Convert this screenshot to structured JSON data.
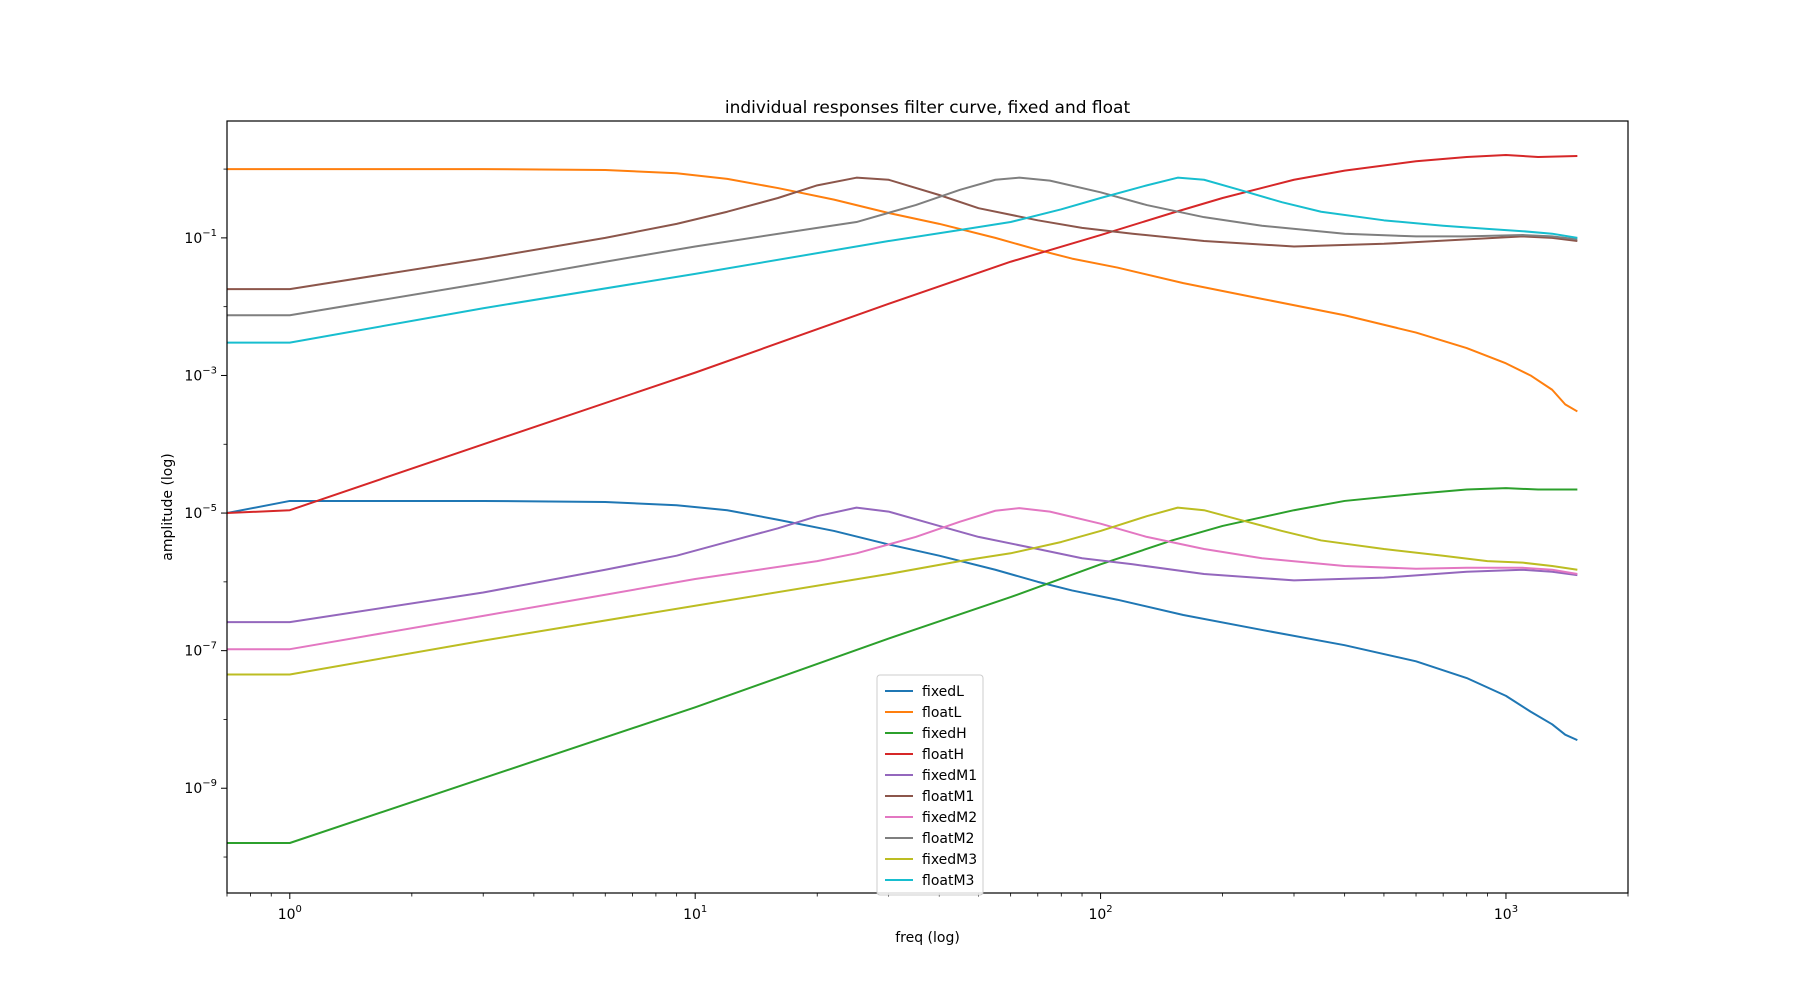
{
  "chart_data": {
    "type": "line",
    "title": "individual responses filter curve, fixed and float",
    "xlabel": "freq (log)",
    "ylabel": "amplitude (log)",
    "xscale": "log",
    "yscale": "log",
    "xlim": [
      0.7,
      2000
    ],
    "ylim": [
      3e-11,
      5
    ],
    "grid": false,
    "legend_position": "lower center",
    "x_ticks": [
      {
        "value": 1,
        "mantissa": "10",
        "exp": "0"
      },
      {
        "value": 10,
        "mantissa": "10",
        "exp": "1"
      },
      {
        "value": 100,
        "mantissa": "10",
        "exp": "2"
      },
      {
        "value": 1000,
        "mantissa": "10",
        "exp": "3"
      }
    ],
    "y_ticks": [
      {
        "value": 1e-09,
        "mantissa": "10",
        "exp": "−9"
      },
      {
        "value": 1e-07,
        "mantissa": "10",
        "exp": "−7"
      },
      {
        "value": 1e-05,
        "mantissa": "10",
        "exp": "−5"
      },
      {
        "value": 0.001,
        "mantissa": "10",
        "exp": "−3"
      },
      {
        "value": 0.1,
        "mantissa": "10",
        "exp": "−1"
      }
    ],
    "series": [
      {
        "name": "fixedL",
        "color": "#1f77b4",
        "points": [
          [
            0.7,
            1e-05
          ],
          [
            1,
            1.5e-05
          ],
          [
            3,
            1.5e-05
          ],
          [
            6,
            1.45e-05
          ],
          [
            9,
            1.3e-05
          ],
          [
            12,
            1.1e-05
          ],
          [
            16,
            8e-06
          ],
          [
            22,
            5.5e-06
          ],
          [
            30,
            3.5e-06
          ],
          [
            40,
            2.4e-06
          ],
          [
            55,
            1.5e-06
          ],
          [
            70,
            1e-06
          ],
          [
            85,
            7.5e-07
          ],
          [
            110,
            5.5e-07
          ],
          [
            160,
            3.3e-07
          ],
          [
            250,
            2e-07
          ],
          [
            400,
            1.2e-07
          ],
          [
            600,
            7e-08
          ],
          [
            800,
            4e-08
          ],
          [
            1000,
            2.2e-08
          ],
          [
            1150,
            1.3e-08
          ],
          [
            1300,
            8.5e-09
          ],
          [
            1400,
            6e-09
          ],
          [
            1500,
            5e-09
          ]
        ]
      },
      {
        "name": "floatL",
        "color": "#ff7f0e",
        "points": [
          [
            0.7,
            1.0
          ],
          [
            1,
            1.0
          ],
          [
            3,
            1.0
          ],
          [
            6,
            0.97
          ],
          [
            9,
            0.87
          ],
          [
            12,
            0.72
          ],
          [
            16,
            0.53
          ],
          [
            22,
            0.36
          ],
          [
            30,
            0.23
          ],
          [
            40,
            0.16
          ],
          [
            55,
            0.1
          ],
          [
            70,
            0.067
          ],
          [
            85,
            0.05
          ],
          [
            110,
            0.037
          ],
          [
            160,
            0.022
          ],
          [
            250,
            0.013
          ],
          [
            400,
            0.0075
          ],
          [
            600,
            0.0042
          ],
          [
            800,
            0.0025
          ],
          [
            1000,
            0.0015
          ],
          [
            1150,
            0.001
          ],
          [
            1300,
            0.00062
          ],
          [
            1400,
            0.00038
          ],
          [
            1500,
            0.0003
          ]
        ]
      },
      {
        "name": "fixedH",
        "color": "#2ca02c",
        "points": [
          [
            0.7,
            1.6e-10
          ],
          [
            1,
            1.6e-10
          ],
          [
            3,
            1.4e-09
          ],
          [
            10,
            1.5e-08
          ],
          [
            30,
            1.5e-07
          ],
          [
            60,
            6e-07
          ],
          [
            100,
            1.8e-06
          ],
          [
            150,
            4e-06
          ],
          [
            200,
            6.5e-06
          ],
          [
            300,
            1.1e-05
          ],
          [
            400,
            1.5e-05
          ],
          [
            600,
            1.9e-05
          ],
          [
            800,
            2.2e-05
          ],
          [
            1000,
            2.3e-05
          ],
          [
            1200,
            2.2e-05
          ],
          [
            1500,
            2.2e-05
          ]
        ]
      },
      {
        "name": "floatH",
        "color": "#d62728",
        "points": [
          [
            0.7,
            1e-05
          ],
          [
            1,
            1.1e-05
          ],
          [
            3,
            0.0001
          ],
          [
            10,
            0.0011
          ],
          [
            30,
            0.011
          ],
          [
            60,
            0.045
          ],
          [
            100,
            0.11
          ],
          [
            150,
            0.23
          ],
          [
            200,
            0.38
          ],
          [
            300,
            0.7
          ],
          [
            400,
            0.95
          ],
          [
            600,
            1.3
          ],
          [
            800,
            1.5
          ],
          [
            1000,
            1.6
          ],
          [
            1200,
            1.5
          ],
          [
            1500,
            1.55
          ]
        ]
      },
      {
        "name": "fixedM1",
        "color": "#9467bd",
        "points": [
          [
            0.7,
            2.6e-07
          ],
          [
            1,
            2.6e-07
          ],
          [
            3,
            7e-07
          ],
          [
            6,
            1.5e-06
          ],
          [
            9,
            2.4e-06
          ],
          [
            12,
            3.8e-06
          ],
          [
            16,
            6e-06
          ],
          [
            20,
            9e-06
          ],
          [
            25,
            1.2e-05
          ],
          [
            30,
            1.05e-05
          ],
          [
            40,
            6.5e-06
          ],
          [
            50,
            4.5e-06
          ],
          [
            70,
            3e-06
          ],
          [
            90,
            2.2e-06
          ],
          [
            120,
            1.8e-06
          ],
          [
            180,
            1.3e-06
          ],
          [
            300,
            1.05e-06
          ],
          [
            500,
            1.15e-06
          ],
          [
            800,
            1.4e-06
          ],
          [
            1100,
            1.5e-06
          ],
          [
            1300,
            1.4e-06
          ],
          [
            1500,
            1.25e-06
          ]
        ]
      },
      {
        "name": "floatM1",
        "color": "#8c564b",
        "points": [
          [
            0.7,
            0.018
          ],
          [
            1,
            0.018
          ],
          [
            3,
            0.05
          ],
          [
            6,
            0.1
          ],
          [
            9,
            0.16
          ],
          [
            12,
            0.24
          ],
          [
            16,
            0.38
          ],
          [
            20,
            0.58
          ],
          [
            25,
            0.75
          ],
          [
            30,
            0.7
          ],
          [
            40,
            0.42
          ],
          [
            50,
            0.27
          ],
          [
            70,
            0.18
          ],
          [
            90,
            0.14
          ],
          [
            120,
            0.115
          ],
          [
            180,
            0.09
          ],
          [
            300,
            0.075
          ],
          [
            500,
            0.082
          ],
          [
            800,
            0.095
          ],
          [
            1100,
            0.105
          ],
          [
            1300,
            0.1
          ],
          [
            1500,
            0.09
          ]
        ]
      },
      {
        "name": "fixedM2",
        "color": "#e377c2",
        "points": [
          [
            0.7,
            1.05e-07
          ],
          [
            1,
            1.05e-07
          ],
          [
            3,
            3.2e-07
          ],
          [
            6,
            6.5e-07
          ],
          [
            10,
            1.1e-06
          ],
          [
            20,
            2e-06
          ],
          [
            25,
            2.6e-06
          ],
          [
            35,
            4.5e-06
          ],
          [
            45,
            7.5e-06
          ],
          [
            55,
            1.08e-05
          ],
          [
            63,
            1.18e-05
          ],
          [
            75,
            1.05e-05
          ],
          [
            100,
            7e-06
          ],
          [
            130,
            4.5e-06
          ],
          [
            180,
            3e-06
          ],
          [
            250,
            2.2e-06
          ],
          [
            400,
            1.7e-06
          ],
          [
            600,
            1.55e-06
          ],
          [
            800,
            1.6e-06
          ],
          [
            1100,
            1.6e-06
          ],
          [
            1300,
            1.5e-06
          ],
          [
            1500,
            1.3e-06
          ]
        ]
      },
      {
        "name": "floatM2",
        "color": "#7f7f7f",
        "points": [
          [
            0.7,
            0.0075
          ],
          [
            1,
            0.0075
          ],
          [
            3,
            0.022
          ],
          [
            6,
            0.045
          ],
          [
            10,
            0.075
          ],
          [
            20,
            0.14
          ],
          [
            25,
            0.17
          ],
          [
            35,
            0.3
          ],
          [
            45,
            0.5
          ],
          [
            55,
            0.7
          ],
          [
            63,
            0.75
          ],
          [
            75,
            0.68
          ],
          [
            100,
            0.46
          ],
          [
            130,
            0.3
          ],
          [
            180,
            0.2
          ],
          [
            250,
            0.15
          ],
          [
            400,
            0.115
          ],
          [
            600,
            0.105
          ],
          [
            800,
            0.105
          ],
          [
            1100,
            0.11
          ],
          [
            1300,
            0.105
          ],
          [
            1500,
            0.095
          ]
        ]
      },
      {
        "name": "fixedM3",
        "color": "#bcbd22",
        "points": [
          [
            0.7,
            4.5e-08
          ],
          [
            1,
            4.5e-08
          ],
          [
            3,
            1.4e-07
          ],
          [
            10,
            4.5e-07
          ],
          [
            30,
            1.3e-06
          ],
          [
            45,
            2e-06
          ],
          [
            60,
            2.6e-06
          ],
          [
            80,
            3.8e-06
          ],
          [
            100,
            5.5e-06
          ],
          [
            130,
            9e-06
          ],
          [
            155,
            1.2e-05
          ],
          [
            180,
            1.1e-05
          ],
          [
            220,
            8e-06
          ],
          [
            280,
            5.5e-06
          ],
          [
            350,
            4e-06
          ],
          [
            500,
            3e-06
          ],
          [
            700,
            2.4e-06
          ],
          [
            900,
            2e-06
          ],
          [
            1100,
            1.9e-06
          ],
          [
            1300,
            1.7e-06
          ],
          [
            1500,
            1.5e-06
          ]
        ]
      },
      {
        "name": "floatM3",
        "color": "#17becf",
        "points": [
          [
            0.7,
            0.003
          ],
          [
            1,
            0.003
          ],
          [
            3,
            0.0095
          ],
          [
            10,
            0.03
          ],
          [
            30,
            0.09
          ],
          [
            45,
            0.13
          ],
          [
            60,
            0.17
          ],
          [
            80,
            0.26
          ],
          [
            100,
            0.38
          ],
          [
            130,
            0.58
          ],
          [
            155,
            0.75
          ],
          [
            180,
            0.7
          ],
          [
            220,
            0.5
          ],
          [
            280,
            0.33
          ],
          [
            350,
            0.24
          ],
          [
            500,
            0.18
          ],
          [
            700,
            0.15
          ],
          [
            900,
            0.135
          ],
          [
            1100,
            0.125
          ],
          [
            1300,
            0.115
          ],
          [
            1500,
            0.1
          ]
        ]
      }
    ]
  }
}
